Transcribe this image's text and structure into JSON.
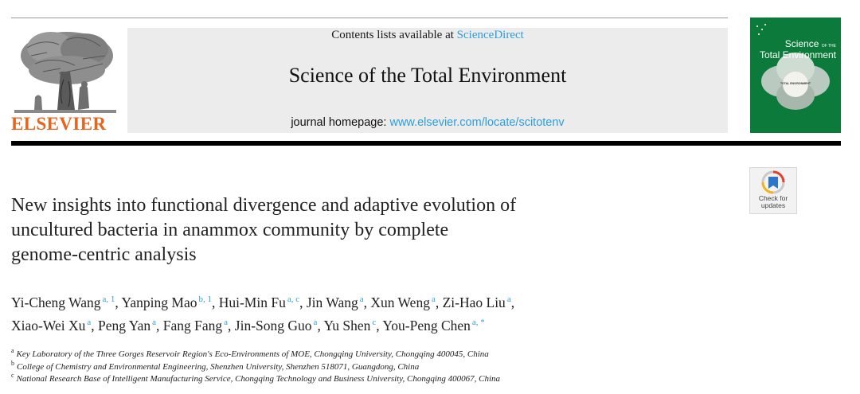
{
  "header": {
    "contents_prefix": "Contents lists available at",
    "contents_link": "ScienceDirect",
    "journal_title": "Science of the Total Environment",
    "homepage_prefix": "journal homepage:",
    "homepage_url": "www.elsevier.com/locate/scitotenv",
    "publisher": "ELSEVIER"
  },
  "cover": {
    "title_line1": "Science",
    "title_of_the": "OF THE",
    "title_line2": "Total Environment",
    "center_label": "TOTAL ENVIRONMENT",
    "color": "#0c7a3a"
  },
  "badge": {
    "line1": "Check for",
    "line2": "updates"
  },
  "article": {
    "title_lines": [
      "New insights into functional divergence and adaptive evolution of",
      "uncultured bacteria in anammox community by complete",
      "genome-centric analysis"
    ]
  },
  "authors": [
    {
      "name": "Yi-Cheng Wang",
      "marks": "a, 1"
    },
    {
      "name": "Yanping Mao",
      "marks": "b, 1"
    },
    {
      "name": "Hui-Min Fu",
      "marks": "a, c"
    },
    {
      "name": "Jin Wang",
      "marks": "a"
    },
    {
      "name": "Xun Weng",
      "marks": "a"
    },
    {
      "name": "Zi-Hao Liu",
      "marks": "a"
    },
    {
      "name": "Xiao-Wei Xu",
      "marks": "a"
    },
    {
      "name": "Peng Yan",
      "marks": "a"
    },
    {
      "name": "Fang Fang",
      "marks": "a"
    },
    {
      "name": "Jin-Song Guo",
      "marks": "a"
    },
    {
      "name": "Yu Shen",
      "marks": "c"
    },
    {
      "name": "You-Peng Chen",
      "marks": "a, *"
    }
  ],
  "affiliations": [
    {
      "letter": "a",
      "text": "Key Laboratory of the Three Gorges Reservoir Region's Eco-Environments of MOE, Chongqing University, Chongqing 400045, China"
    },
    {
      "letter": "b",
      "text": "College of Chemistry and Environmental Engineering, Shenzhen University, Shenzhen 518071, Guangdong, China"
    },
    {
      "letter": "c",
      "text": "National Research Base of Intelligent Manufacturing Service, Chongqing Technology and Business University, Chongqing 400067, China"
    }
  ],
  "colors": {
    "link": "#2c9ed9",
    "publisher": "#e8641b",
    "header_band": "#ececec"
  }
}
